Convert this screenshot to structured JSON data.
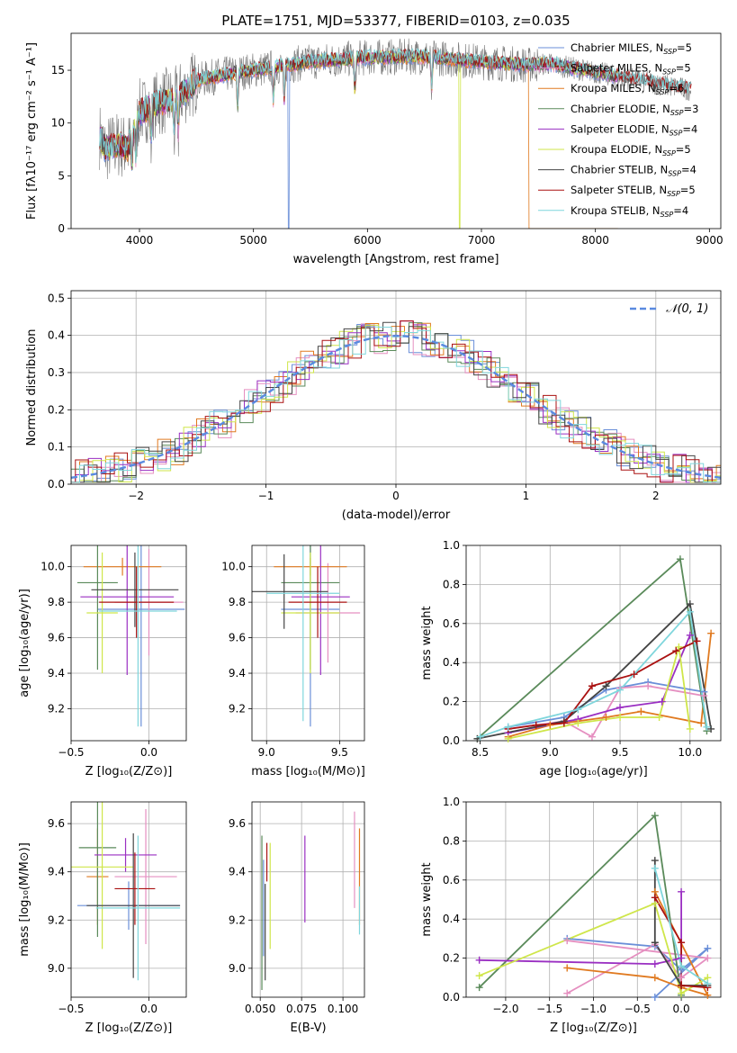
{
  "colors": {
    "chabrier_miles": "#6a8fd8",
    "salpeter_miles": "#e58fc0",
    "kroupa_miles": "#e07a20",
    "chabrier_elodie": "#5a8a5a",
    "salpeter_elodie": "#9a2fc2",
    "kroupa_elodie": "#cfe64a",
    "chabrier_stelib": "#444444",
    "salpeter_stelib": "#aa1111",
    "kroupa_stelib": "#7fd6dc"
  },
  "chart_data": [
    {
      "id": "spectrum",
      "type": "line",
      "title": "PLATE=1751, MJD=53377, FIBERID=0103, z=0.035",
      "xlabel": "wavelength [Angstrom, rest frame]",
      "ylabel": "Flux [fλ10⁻¹⁷ erg cm⁻² s⁻¹ A⁻¹]",
      "xlim": [
        3400,
        9100
      ],
      "ylim": [
        0,
        18.5
      ],
      "xticks": [
        4000,
        5000,
        6000,
        7000,
        8000,
        9000
      ],
      "yticks": [
        0,
        5,
        10,
        15
      ],
      "legend_position": "upper-right",
      "legend": [
        {
          "key": "chabrier_miles",
          "label": "Chabrier MILES, N",
          "sub": "SSP",
          "suffix": "=5"
        },
        {
          "key": "salpeter_miles",
          "label": "Salpeter MILES, N",
          "sub": "SSP",
          "suffix": "=5"
        },
        {
          "key": "kroupa_miles",
          "label": "Kroupa MILES, N",
          "sub": "SSP",
          "suffix": "=6"
        },
        {
          "key": "chabrier_elodie",
          "label": "Chabrier ELODIE, N",
          "sub": "SSP",
          "suffix": "=3"
        },
        {
          "key": "salpeter_elodie",
          "label": "Salpeter ELODIE, N",
          "sub": "SSP",
          "suffix": "=4"
        },
        {
          "key": "kroupa_elodie",
          "label": "Kroupa ELODIE, N",
          "sub": "SSP",
          "suffix": "=5"
        },
        {
          "key": "chabrier_stelib",
          "label": "Chabrier STELIB, N",
          "sub": "SSP",
          "suffix": "=4"
        },
        {
          "key": "salpeter_stelib",
          "label": "Salpeter STELIB, N",
          "sub": "SSP",
          "suffix": "=5"
        },
        {
          "key": "kroupa_stelib",
          "label": "Kroupa STELIB, N",
          "sub": "SSP",
          "suffix": "=4"
        }
      ],
      "continuum": {
        "x": [
          3650,
          3700,
          3800,
          3900,
          3950,
          4000,
          4100,
          4200,
          4300,
          4400,
          4500,
          4700,
          5000,
          5500,
          6000,
          6500,
          7000,
          7400,
          7600,
          7800,
          8000,
          8300,
          8600,
          8800
        ],
        "y": [
          8.8,
          7.5,
          8.0,
          7.6,
          9.5,
          11.0,
          11.5,
          12.0,
          12.3,
          13.0,
          14.0,
          14.5,
          15.0,
          15.8,
          16.2,
          16.3,
          15.8,
          15.5,
          15.6,
          15.2,
          14.8,
          14.2,
          13.6,
          13.2
        ]
      },
      "dropouts": [
        {
          "key": "chabrier_miles",
          "x": 5310
        },
        {
          "key": "kroupa_elodie",
          "x": 6810
        },
        {
          "key": "kroupa_miles",
          "x": 7420
        }
      ],
      "absorption_lines": [
        3934,
        3969,
        4102,
        4304,
        4340,
        4861,
        5175,
        5270,
        5890,
        6563
      ]
    },
    {
      "id": "residuals",
      "type": "histogram",
      "xlabel": "(data-model)/error",
      "ylabel": "Normed distribution",
      "xlim": [
        -2.5,
        2.5
      ],
      "ylim": [
        0,
        0.52
      ],
      "xticks": [
        -2,
        -1,
        0,
        1,
        2
      ],
      "yticks": [
        0.0,
        0.1,
        0.2,
        0.3,
        0.4,
        0.5
      ],
      "legend_position": "upper-right",
      "reference_label": "𝒩(0, 1)",
      "reference_color": "#5a8ae0",
      "bin_width": 0.1
    },
    {
      "id": "age_vs_Z",
      "type": "errorbar",
      "xlabel": "Z [log₁₀(Z/Z⊙)]",
      "ylabel": "age  [log₁₀(age/yr)]",
      "xlim": [
        -0.5,
        0.24
      ],
      "ylim": [
        9.02,
        10.12
      ],
      "xticks": [
        -0.5,
        0.0
      ],
      "yticks": [
        9.2,
        9.4,
        9.6,
        9.8,
        10.0
      ],
      "points": [
        {
          "key": "chabrier_miles",
          "x": -0.05,
          "xerr": 0.28,
          "y": 9.76,
          "yerr": 0.66
        },
        {
          "key": "salpeter_miles",
          "x": 0.0,
          "xerr": 0.22,
          "y": 9.8,
          "yerr": 0.3
        },
        {
          "key": "kroupa_miles",
          "x": -0.17,
          "xerr": 0.25,
          "y": 10.0,
          "yerr": 0.05
        },
        {
          "key": "chabrier_elodie",
          "x": -0.33,
          "xerr": 0.13,
          "y": 9.91,
          "yerr": 0.49
        },
        {
          "key": "salpeter_elodie",
          "x": -0.14,
          "xerr": 0.3,
          "y": 9.83,
          "yerr": 0.44
        },
        {
          "key": "kroupa_elodie",
          "x": -0.3,
          "xerr": 0.1,
          "y": 9.74,
          "yerr": 0.34
        },
        {
          "key": "chabrier_stelib",
          "x": -0.09,
          "xerr": 0.28,
          "y": 9.87,
          "yerr": 0.21
        },
        {
          "key": "salpeter_stelib",
          "x": -0.08,
          "xerr": 0.24,
          "y": 9.8,
          "yerr": 0.2
        },
        {
          "key": "kroupa_stelib",
          "x": -0.07,
          "xerr": 0.25,
          "y": 9.75,
          "yerr": 0.65
        }
      ]
    },
    {
      "id": "age_vs_mass",
      "type": "errorbar",
      "xlabel": "mass [log₁₀(M/M⊙)]",
      "ylabel": "",
      "xlim": [
        8.9,
        9.67
      ],
      "ylim": [
        9.02,
        10.12
      ],
      "xticks": [
        9.0,
        9.5
      ],
      "yticks": [
        9.2,
        9.4,
        9.6,
        9.8,
        10.0
      ],
      "points": [
        {
          "key": "chabrier_miles",
          "x": 9.3,
          "xerr": 0.2,
          "y": 9.76,
          "yerr": 0.66
        },
        {
          "key": "salpeter_miles",
          "x": 9.42,
          "xerr": 0.22,
          "y": 9.74,
          "yerr": 0.28
        },
        {
          "key": "kroupa_miles",
          "x": 9.3,
          "xerr": 0.25,
          "y": 10.0,
          "yerr": 0.05
        },
        {
          "key": "chabrier_elodie",
          "x": 9.3,
          "xerr": 0.2,
          "y": 9.91,
          "yerr": 0.49
        },
        {
          "key": "salpeter_elodie",
          "x": 9.37,
          "xerr": 0.2,
          "y": 9.83,
          "yerr": 0.44
        },
        {
          "key": "kroupa_elodie",
          "x": 9.3,
          "xerr": 0.2,
          "y": 9.74,
          "yerr": 0.34
        },
        {
          "key": "chabrier_stelib",
          "x": 9.12,
          "xerr": 0.3,
          "y": 9.86,
          "yerr": 0.21
        },
        {
          "key": "salpeter_stelib",
          "x": 9.35,
          "xerr": 0.2,
          "y": 9.8,
          "yerr": 0.2
        },
        {
          "key": "kroupa_stelib",
          "x": 9.25,
          "xerr": 0.25,
          "y": 9.85,
          "yerr": 0.72
        }
      ]
    },
    {
      "id": "weight_vs_age",
      "type": "line",
      "xlabel": "age  [log₁₀(age/yr)]",
      "ylabel": "mass weight",
      "xlim": [
        8.4,
        10.22
      ],
      "ylim": [
        0,
        1.0
      ],
      "xticks": [
        8.5,
        9.0,
        9.5,
        10.0
      ],
      "yticks": [
        0.0,
        0.2,
        0.4,
        0.6,
        0.8,
        1.0
      ],
      "series": [
        {
          "key": "chabrier_miles",
          "x": [
            8.7,
            9.1,
            9.4,
            9.7,
            10.1
          ],
          "y": [
            0.07,
            0.12,
            0.26,
            0.3,
            0.25
          ]
        },
        {
          "key": "salpeter_miles",
          "x": [
            8.7,
            9.1,
            9.3,
            9.5,
            9.7,
            10.1
          ],
          "y": [
            0.06,
            0.1,
            0.02,
            0.27,
            0.28,
            0.23
          ]
        },
        {
          "key": "kroupa_miles",
          "x": [
            8.7,
            9.0,
            9.4,
            9.65,
            10.08,
            10.15
          ],
          "y": [
            0.02,
            0.08,
            0.12,
            0.15,
            0.09,
            0.55
          ]
        },
        {
          "key": "chabrier_elodie",
          "x": [
            8.48,
            9.93,
            10.12
          ],
          "y": [
            0.01,
            0.93,
            0.05
          ]
        },
        {
          "key": "salpeter_elodie",
          "x": [
            8.7,
            9.2,
            9.5,
            9.8,
            10.0
          ],
          "y": [
            0.04,
            0.11,
            0.17,
            0.2,
            0.54
          ]
        },
        {
          "key": "kroupa_elodie",
          "x": [
            8.7,
            9.2,
            9.5,
            9.78,
            9.92,
            10.0
          ],
          "y": [
            0.01,
            0.09,
            0.12,
            0.12,
            0.48,
            0.06
          ]
        },
        {
          "key": "chabrier_stelib",
          "x": [
            8.48,
            9.1,
            9.4,
            10.0,
            10.15
          ],
          "y": [
            0.01,
            0.1,
            0.28,
            0.7,
            0.06
          ]
        },
        {
          "key": "salpeter_stelib",
          "x": [
            8.7,
            8.9,
            9.1,
            9.3,
            9.6,
            9.9,
            10.05
          ],
          "y": [
            0.06,
            0.08,
            0.09,
            0.28,
            0.34,
            0.46,
            0.51
          ]
        },
        {
          "key": "kroupa_stelib",
          "x": [
            8.5,
            8.7,
            9.2,
            9.5,
            10.0,
            10.12
          ],
          "y": [
            0.02,
            0.07,
            0.16,
            0.26,
            0.66,
            0.07
          ]
        }
      ]
    },
    {
      "id": "mass_vs_Z",
      "type": "errorbar",
      "xlabel": "Z [log₁₀(Z/Z⊙)]",
      "ylabel": "mass [log₁₀(M/M⊙)]",
      "xlim": [
        -0.5,
        0.24
      ],
      "ylim": [
        8.88,
        9.69
      ],
      "xticks": [
        -0.5,
        0.0
      ],
      "yticks": [
        9.0,
        9.2,
        9.4,
        9.6
      ],
      "points": [
        {
          "key": "chabrier_miles",
          "x": -0.13,
          "xerr": 0.33,
          "y": 9.26,
          "yerr": 0.1
        },
        {
          "key": "salpeter_miles",
          "x": -0.02,
          "xerr": 0.2,
          "y": 9.38,
          "yerr": 0.28
        },
        {
          "key": "kroupa_miles",
          "x": -0.33,
          "xerr": 0.07,
          "y": 9.38,
          "yerr": 0.2
        },
        {
          "key": "chabrier_elodie",
          "x": -0.33,
          "xerr": 0.12,
          "y": 9.5,
          "yerr": 0.37
        },
        {
          "key": "salpeter_elodie",
          "x": -0.15,
          "xerr": 0.2,
          "y": 9.47,
          "yerr": 0.07
        },
        {
          "key": "kroupa_elodie",
          "x": -0.3,
          "xerr": 0.2,
          "y": 9.42,
          "yerr": 0.34
        },
        {
          "key": "chabrier_stelib",
          "x": -0.1,
          "xerr": 0.3,
          "y": 9.26,
          "yerr": 0.3
        },
        {
          "key": "salpeter_stelib",
          "x": -0.09,
          "xerr": 0.13,
          "y": 9.33,
          "yerr": 0.15
        },
        {
          "key": "kroupa_stelib",
          "x": -0.07,
          "xerr": 0.27,
          "y": 9.25,
          "yerr": 0.3
        }
      ]
    },
    {
      "id": "mass_vs_ebv",
      "type": "errorbar",
      "xlabel": "E(B-V)",
      "ylabel": "",
      "xlim": [
        0.045,
        0.113
      ],
      "ylim": [
        8.88,
        9.69
      ],
      "xticks": [
        0.05,
        0.075,
        0.1
      ],
      "xtick_labels": [
        "0.050",
        "0.075",
        "0.100"
      ],
      "yticks": [
        9.0,
        9.2,
        9.4,
        9.6
      ],
      "points": [
        {
          "key": "chabrier_miles",
          "x": 0.052,
          "yerr": 0.2,
          "y": 9.25
        },
        {
          "key": "salpeter_miles",
          "x": 0.107,
          "yerr": 0.2,
          "y": 9.45
        },
        {
          "key": "kroupa_miles",
          "x": 0.11,
          "yerr": 0.2,
          "y": 9.38
        },
        {
          "key": "chabrier_elodie",
          "x": 0.051,
          "yerr": 0.32,
          "y": 9.23
        },
        {
          "key": "salpeter_elodie",
          "x": 0.077,
          "yerr": 0.18,
          "y": 9.37
        },
        {
          "key": "kroupa_elodie",
          "x": 0.056,
          "yerr": 0.22,
          "y": 9.3
        },
        {
          "key": "chabrier_stelib",
          "x": 0.053,
          "yerr": 0.2,
          "y": 9.15
        },
        {
          "key": "salpeter_stelib",
          "x": 0.054,
          "yerr": 0.08,
          "y": 9.44
        },
        {
          "key": "kroupa_stelib",
          "x": 0.11,
          "yerr": 0.1,
          "y": 9.24
        }
      ]
    },
    {
      "id": "weight_vs_Z",
      "type": "line",
      "xlabel": "Z [log₁₀(Z/Z⊙)]",
      "ylabel": "mass weight",
      "xlim": [
        -2.45,
        0.45
      ],
      "ylim": [
        0,
        1.0
      ],
      "xticks": [
        -2.0,
        -1.5,
        -1.0,
        -0.5,
        0.0
      ],
      "yticks": [
        0.0,
        0.2,
        0.4,
        0.6,
        0.8,
        1.0
      ],
      "series": [
        {
          "key": "chabrier_miles",
          "x": [
            -1.3,
            -0.3,
            0.0,
            0.3,
            -0.3
          ],
          "y": [
            0.3,
            0.26,
            0.14,
            0.25,
            0.0
          ]
        },
        {
          "key": "salpeter_miles",
          "x": [
            -1.3,
            -0.3,
            0.0,
            0.3,
            -1.3
          ],
          "y": [
            0.02,
            0.27,
            0.1,
            0.2,
            0.29
          ]
        },
        {
          "key": "kroupa_miles",
          "x": [
            -1.3,
            -0.3,
            0.0,
            0.3,
            -0.3
          ],
          "y": [
            0.15,
            0.1,
            0.05,
            0.01,
            0.54
          ]
        },
        {
          "key": "chabrier_elodie",
          "x": [
            -2.3,
            -0.3,
            0.0
          ],
          "y": [
            0.05,
            0.93,
            0.01
          ]
        },
        {
          "key": "salpeter_elodie",
          "x": [
            -2.3,
            -0.3,
            0.0,
            0.0
          ],
          "y": [
            0.19,
            0.17,
            0.2,
            0.54
          ]
        },
        {
          "key": "kroupa_elodie",
          "x": [
            -2.3,
            -0.3,
            0.0,
            0.3
          ],
          "y": [
            0.11,
            0.48,
            0.02,
            0.1
          ]
        },
        {
          "key": "chabrier_stelib",
          "x": [
            -0.3,
            -0.3,
            0.0,
            0.3
          ],
          "y": [
            0.7,
            0.28,
            0.06,
            0.06
          ]
        },
        {
          "key": "salpeter_stelib",
          "x": [
            -0.3,
            0.0,
            0.0,
            0.3
          ],
          "y": [
            0.51,
            0.28,
            0.06,
            0.05
          ]
        },
        {
          "key": "kroupa_stelib",
          "x": [
            -0.3,
            0.0,
            0.3
          ],
          "y": [
            0.66,
            0.16,
            0.07
          ]
        }
      ]
    }
  ]
}
